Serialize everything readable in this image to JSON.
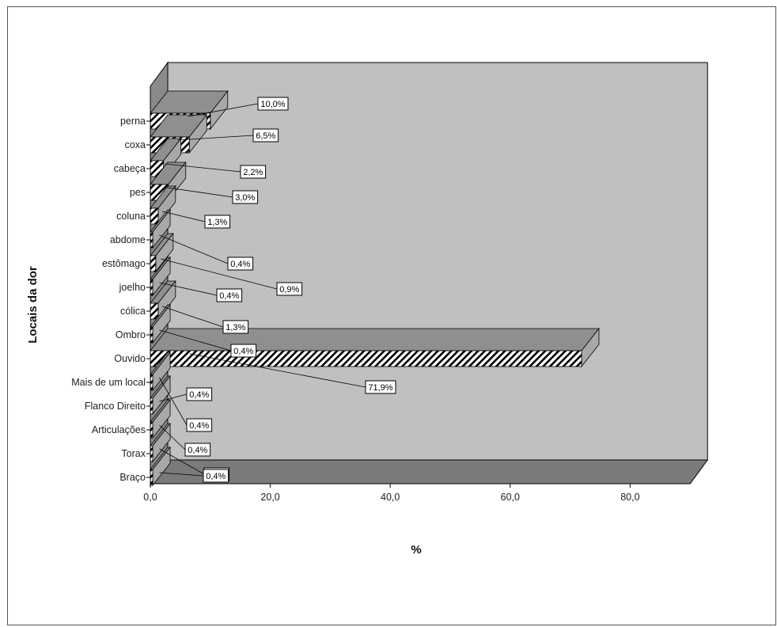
{
  "chart_data": {
    "type": "bar",
    "orientation": "horizontal",
    "three_d": true,
    "ylabel": "Locais da dor",
    "xlabel": "%",
    "categories": [
      "perna",
      "coxa",
      "cabeça",
      "pes",
      "coluna",
      "abdome",
      "estômago",
      "joelho",
      "cólica",
      "Ombro",
      "Ouvido",
      "Mais de um local",
      "Flanco Direito",
      "Articulações",
      "Torax",
      "Braço"
    ],
    "values": [
      10.0,
      6.5,
      2.2,
      3.0,
      1.3,
      0.4,
      0.9,
      0.4,
      1.3,
      0.4,
      71.9,
      0.4,
      0.4,
      0.4,
      0.4,
      0.4
    ],
    "data_labels": [
      "10,0%",
      "6,5%",
      "2,2%",
      "3,0%",
      "1,3%",
      "0,4%",
      "0,9%",
      "0,4%",
      "1,3%",
      "0,4%",
      "71,9%",
      "0,4%",
      "0,4%",
      "0,4%",
      "0,4%",
      "0,4%"
    ],
    "xlim": [
      0,
      90
    ],
    "xticks": [
      0,
      20,
      40,
      60,
      80
    ],
    "xtick_labels": [
      "0,0",
      "20,0",
      "40,0",
      "60,0",
      "80,0"
    ],
    "grid": false,
    "legend": "none",
    "colors": {
      "wall": "#c0c0c0",
      "floor": "#7a7a7a",
      "side_wall": "#8a8a8a",
      "bar_fill": "#ffffff",
      "bar_hatch": "#000000",
      "bar_top": "#8f8f8f",
      "bar_side": "#a8a8a8"
    }
  }
}
